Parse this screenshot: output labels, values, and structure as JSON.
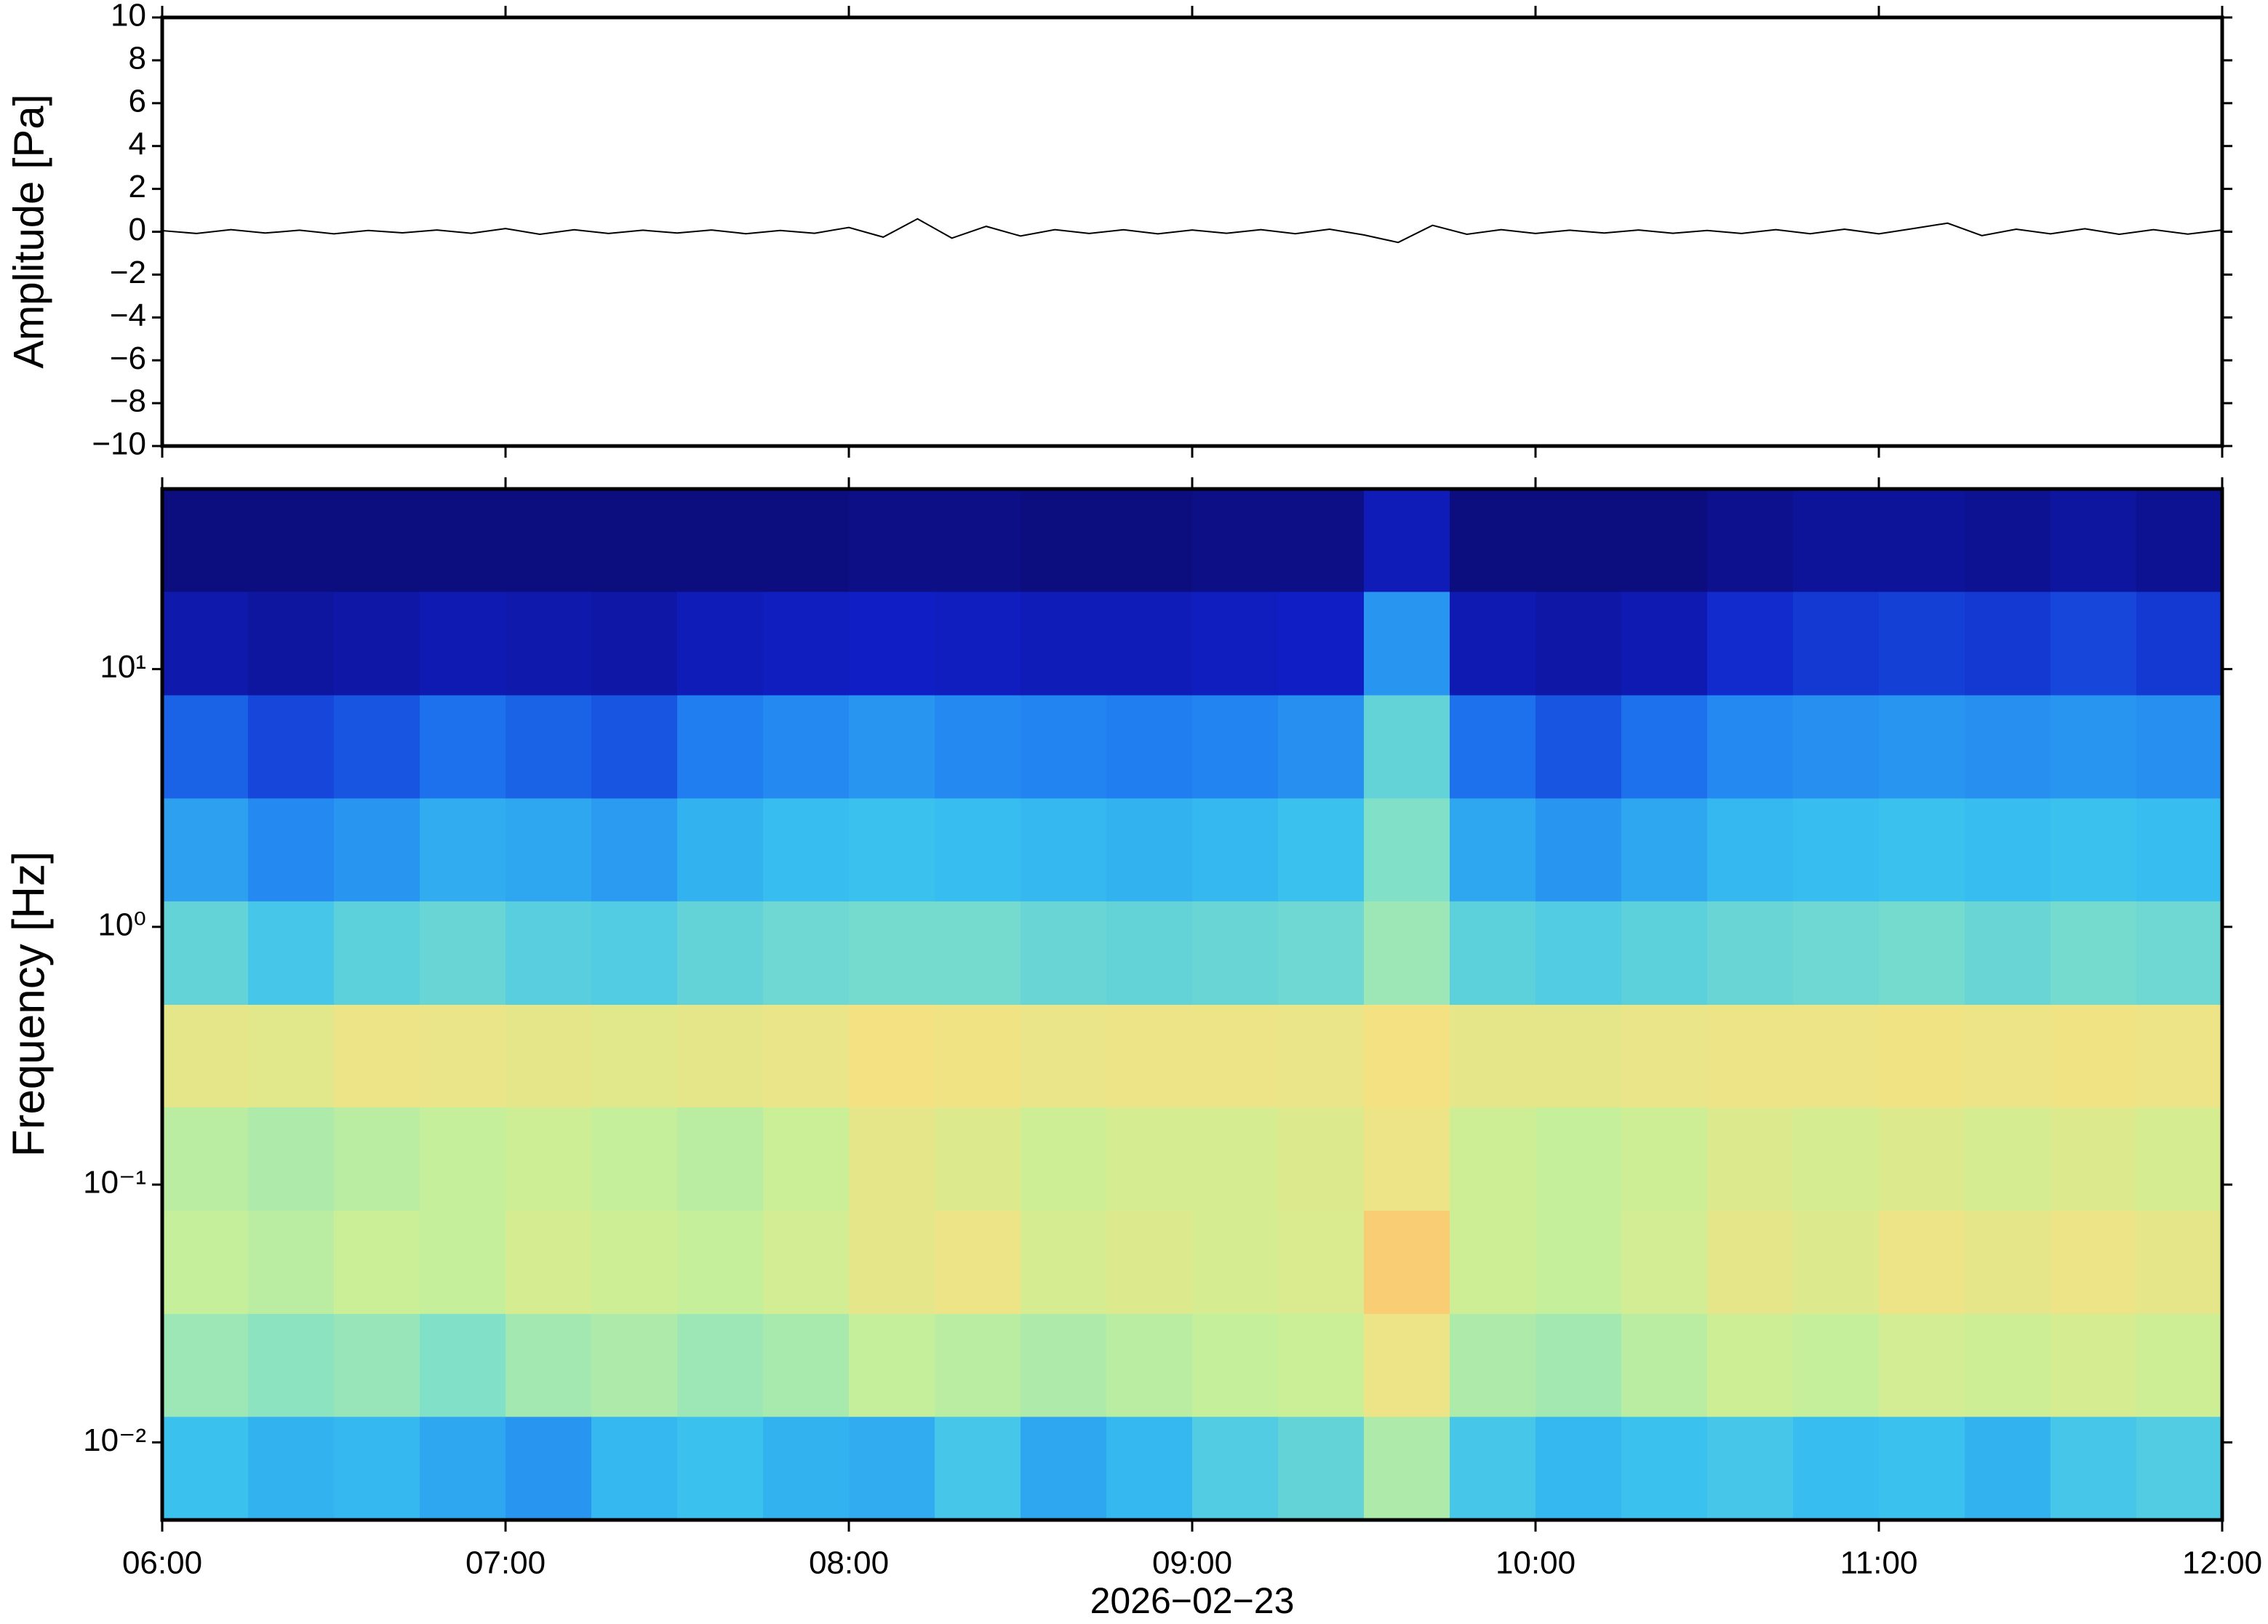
{
  "chart_data": [
    {
      "type": "line",
      "ylabel": "Amplitude [Pa]",
      "color": "#000000",
      "xlim": [
        "06:00",
        "12:00"
      ],
      "xticks": [
        "06:00",
        "07:00",
        "08:00",
        "09:00",
        "10:00",
        "11:00",
        "12:00"
      ],
      "ylim": [
        -10,
        10
      ],
      "yticks": [
        {
          "value": -10,
          "label": "−10"
        },
        {
          "value": -8,
          "label": "−8"
        },
        {
          "value": -6,
          "label": "−6"
        },
        {
          "value": -4,
          "label": "−4"
        },
        {
          "value": -2,
          "label": "−2"
        },
        0,
        2,
        4,
        6,
        8,
        10
      ],
      "x": [
        "06:00",
        "06:06",
        "06:12",
        "06:18",
        "06:24",
        "06:30",
        "06:36",
        "06:42",
        "06:48",
        "06:54",
        "07:00",
        "07:06",
        "07:12",
        "07:18",
        "07:24",
        "07:30",
        "07:36",
        "07:42",
        "07:48",
        "07:54",
        "08:00",
        "08:06",
        "08:12",
        "08:18",
        "08:24",
        "08:30",
        "08:36",
        "08:42",
        "08:48",
        "08:54",
        "09:00",
        "09:06",
        "09:12",
        "09:18",
        "09:24",
        "09:30",
        "09:36",
        "09:42",
        "09:48",
        "09:54",
        "10:00",
        "10:06",
        "10:12",
        "10:18",
        "10:24",
        "10:30",
        "10:36",
        "10:42",
        "10:48",
        "10:54",
        "11:00",
        "11:06",
        "11:12",
        "11:18",
        "11:24",
        "11:30",
        "11:36",
        "11:42",
        "11:48",
        "11:54",
        "12:00"
      ],
      "values": [
        0.05,
        -0.08,
        0.1,
        -0.06,
        0.07,
        -0.1,
        0.06,
        -0.05,
        0.08,
        -0.07,
        0.15,
        -0.12,
        0.09,
        -0.08,
        0.07,
        -0.06,
        0.08,
        -0.09,
        0.06,
        -0.07,
        0.2,
        -0.25,
        0.6,
        -0.3,
        0.25,
        -0.2,
        0.1,
        -0.08,
        0.09,
        -0.1,
        0.08,
        -0.07,
        0.1,
        -0.09,
        0.12,
        -0.15,
        -0.5,
        0.3,
        -0.12,
        0.1,
        -0.08,
        0.07,
        -0.06,
        0.08,
        -0.07,
        0.06,
        -0.08,
        0.1,
        -0.09,
        0.12,
        -0.1,
        0.15,
        0.4,
        -0.18,
        0.12,
        -0.1,
        0.14,
        -0.12,
        0.1,
        -0.11,
        0.08
      ]
    },
    {
      "type": "heatmap",
      "ylabel": "Frequency [Hz]",
      "xlabel": "2026−02−23",
      "ylog": true,
      "xlim": [
        "06:00",
        "12:00"
      ],
      "xticks": [
        "06:00",
        "07:00",
        "08:00",
        "09:00",
        "10:00",
        "11:00",
        "12:00"
      ],
      "ylim": [
        0.005,
        50
      ],
      "yticks": [
        {
          "value": 0.01,
          "label": "10⁻²"
        },
        {
          "value": 0.1,
          "label": "10⁻¹"
        },
        {
          "value": 1,
          "label": "10⁰"
        },
        {
          "value": 10,
          "label": "10¹"
        }
      ],
      "colormap": [
        "#0c0c7a",
        "#1020c8",
        "#1e78f0",
        "#38c0f0",
        "#80e0c8",
        "#c8f098",
        "#f8e080",
        "#f8b060",
        "#e86040"
      ],
      "x": [
        "06:00",
        "06:15",
        "06:30",
        "06:45",
        "07:00",
        "07:15",
        "07:30",
        "07:45",
        "08:00",
        "08:15",
        "08:30",
        "08:45",
        "09:00",
        "09:15",
        "09:30",
        "09:45",
        "10:00",
        "10:15",
        "10:30",
        "10:45",
        "11:00",
        "11:15",
        "11:30",
        "11:45",
        "12:00"
      ],
      "y": [
        0.005,
        0.0126,
        0.0316,
        0.0794,
        0.2,
        0.5,
        1.26,
        3.16,
        7.94,
        20,
        50
      ],
      "z": [
        [
          0.38,
          0.35,
          0.36,
          0.33,
          0.3,
          0.36,
          0.38,
          0.35,
          0.34,
          0.4,
          0.33,
          0.36,
          0.42,
          0.45,
          0.58,
          0.4,
          0.36,
          0.38,
          0.4,
          0.37,
          0.38,
          0.35,
          0.4,
          0.42
        ],
        [
          0.55,
          0.52,
          0.54,
          0.5,
          0.56,
          0.58,
          0.55,
          0.57,
          0.62,
          0.6,
          0.58,
          0.6,
          0.62,
          0.63,
          0.72,
          0.58,
          0.56,
          0.6,
          0.64,
          0.62,
          0.65,
          0.64,
          0.66,
          0.64
        ],
        [
          0.62,
          0.6,
          0.63,
          0.62,
          0.66,
          0.64,
          0.62,
          0.65,
          0.7,
          0.72,
          0.66,
          0.68,
          0.66,
          0.67,
          0.8,
          0.64,
          0.62,
          0.65,
          0.7,
          0.68,
          0.72,
          0.7,
          0.72,
          0.7
        ],
        [
          0.6,
          0.58,
          0.6,
          0.62,
          0.64,
          0.62,
          0.6,
          0.63,
          0.7,
          0.68,
          0.64,
          0.66,
          0.66,
          0.68,
          0.72,
          0.64,
          0.62,
          0.64,
          0.68,
          0.66,
          0.68,
          0.66,
          0.68,
          0.66
        ],
        [
          0.7,
          0.69,
          0.72,
          0.71,
          0.7,
          0.69,
          0.7,
          0.71,
          0.74,
          0.73,
          0.71,
          0.72,
          0.72,
          0.71,
          0.74,
          0.7,
          0.7,
          0.71,
          0.72,
          0.72,
          0.73,
          0.72,
          0.73,
          0.72
        ],
        [
          0.45,
          0.4,
          0.44,
          0.46,
          0.43,
          0.42,
          0.45,
          0.47,
          0.48,
          0.48,
          0.46,
          0.45,
          0.46,
          0.47,
          0.55,
          0.44,
          0.42,
          0.44,
          0.46,
          0.47,
          0.48,
          0.46,
          0.48,
          0.47
        ],
        [
          0.32,
          0.28,
          0.3,
          0.34,
          0.33,
          0.31,
          0.35,
          0.37,
          0.38,
          0.37,
          0.36,
          0.35,
          0.36,
          0.38,
          0.5,
          0.33,
          0.3,
          0.33,
          0.36,
          0.37,
          0.38,
          0.37,
          0.38,
          0.37
        ],
        [
          0.22,
          0.18,
          0.2,
          0.24,
          0.22,
          0.2,
          0.26,
          0.28,
          0.3,
          0.28,
          0.27,
          0.26,
          0.27,
          0.29,
          0.45,
          0.24,
          0.2,
          0.24,
          0.28,
          0.29,
          0.3,
          0.29,
          0.3,
          0.29
        ],
        [
          0.08,
          0.06,
          0.07,
          0.09,
          0.08,
          0.07,
          0.1,
          0.11,
          0.12,
          0.11,
          0.1,
          0.1,
          0.11,
          0.12,
          0.3,
          0.09,
          0.07,
          0.09,
          0.14,
          0.16,
          0.17,
          0.16,
          0.18,
          0.16
        ],
        [
          0.01,
          0.01,
          0.01,
          0.01,
          0.01,
          0.01,
          0.01,
          0.01,
          0.02,
          0.02,
          0.01,
          0.01,
          0.02,
          0.02,
          0.1,
          0.01,
          0.01,
          0.01,
          0.03,
          0.05,
          0.05,
          0.04,
          0.06,
          0.04
        ]
      ]
    }
  ]
}
